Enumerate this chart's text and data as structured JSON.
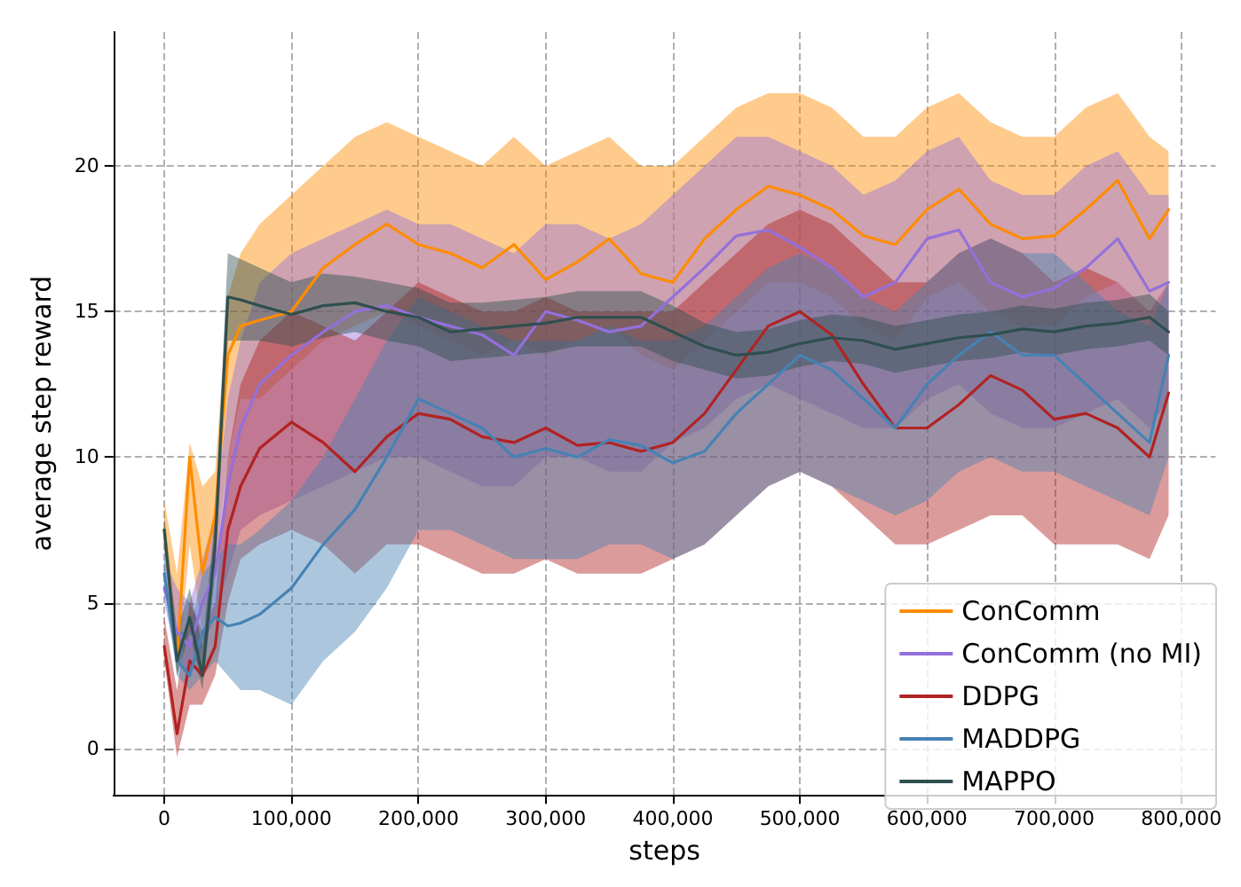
{
  "chart_data": {
    "type": "line",
    "xlabel": "steps",
    "ylabel": "average step reward",
    "x": [
      0,
      10000,
      20000,
      30000,
      40000,
      50000,
      60000,
      75000,
      100000,
      125000,
      150000,
      175000,
      200000,
      225000,
      250000,
      275000,
      300000,
      325000,
      350000,
      375000,
      400000,
      425000,
      450000,
      475000,
      500000,
      525000,
      550000,
      575000,
      600000,
      625000,
      650000,
      675000,
      700000,
      725000,
      750000,
      775000,
      790000
    ],
    "xlim": [
      -40000,
      827000
    ],
    "xticks": [
      0,
      {
        "value": 100000,
        "label": "100,000"
      },
      {
        "value": 200000,
        "label": "200,000"
      },
      {
        "value": 300000,
        "label": "300,000"
      },
      {
        "value": 400000,
        "label": "400,000"
      },
      {
        "value": 500000,
        "label": "500,000"
      },
      {
        "value": 600000,
        "label": "600,000"
      },
      {
        "value": 700000,
        "label": "700,000"
      },
      {
        "value": 800000,
        "label": "800,000"
      }
    ],
    "ylim": [
      -1.6,
      24.6
    ],
    "yticks": [
      0,
      5,
      10,
      15,
      20
    ],
    "grid": true,
    "legend": "bottom right",
    "marker": "none",
    "line_style": "solid",
    "series": [
      {
        "name": "ConComm",
        "color": "#ff8c00",
        "values": [
          7.5,
          3,
          10,
          6,
          8,
          13.5,
          14.5,
          14.7,
          15,
          16.5,
          17.3,
          18,
          17.3,
          17,
          16.5,
          17.3,
          16.1,
          16.7,
          17.5,
          16.3,
          16,
          17.5,
          18.5,
          19.3,
          19,
          18.5,
          17.6,
          17.3,
          18.5,
          19.2,
          18,
          17.5,
          17.6,
          18.5,
          19.5,
          17.5,
          18.5
        ],
        "upper": [
          8.5,
          6,
          10.5,
          9,
          9.5,
          15.5,
          17,
          18,
          19,
          20,
          21,
          21.5,
          21,
          20.5,
          20,
          21,
          20,
          20.5,
          21,
          20,
          20,
          21,
          22,
          22.5,
          22.5,
          22,
          21,
          21,
          22,
          22.5,
          21.5,
          21,
          21,
          22,
          22.5,
          21,
          20.5
        ],
        "lower": [
          7,
          2.5,
          7,
          4,
          6,
          10,
          12,
          12,
          13,
          14,
          14.5,
          15,
          14.5,
          14,
          13.5,
          14,
          13.5,
          14,
          14.5,
          13.5,
          13,
          14,
          15,
          16,
          16,
          15.5,
          14.5,
          14,
          15.5,
          16,
          15,
          14.5,
          14.5,
          15.5,
          16,
          15,
          16
        ]
      },
      {
        "name": "ConComm (no MI)",
        "color": "#9370db",
        "values": [
          5.5,
          4,
          3.5,
          5,
          6,
          9,
          11,
          12.5,
          13.5,
          14.3,
          15,
          15.2,
          14.8,
          14.5,
          14.2,
          13.5,
          15,
          14.7,
          14.3,
          14.5,
          15.5,
          16.5,
          17.6,
          17.8,
          17.2,
          16.5,
          15.5,
          16,
          17.5,
          17.8,
          16,
          15.5,
          15.8,
          16.5,
          17.5,
          15.7,
          16
        ],
        "upper": [
          6.5,
          5.5,
          5,
          6.5,
          8,
          12,
          14,
          16,
          17,
          17.5,
          18,
          18.5,
          18,
          18,
          17.5,
          17,
          18,
          18,
          17.5,
          18,
          19,
          20,
          21,
          21,
          20.5,
          20,
          19,
          19.5,
          20.5,
          21,
          19.5,
          19,
          19,
          20,
          20.5,
          19,
          19
        ],
        "lower": [
          5,
          3,
          2.5,
          3.5,
          4.5,
          6,
          7.5,
          8,
          8.5,
          9,
          9.5,
          10,
          10,
          9.5,
          9,
          9,
          10,
          10,
          9.5,
          9.5,
          10.5,
          11,
          12,
          12.5,
          12,
          11.5,
          11,
          11,
          12,
          12.5,
          11.5,
          11,
          11,
          11.5,
          12,
          11,
          12
        ]
      },
      {
        "name": "DDPG",
        "color": "#b22222",
        "values": [
          3.5,
          0.5,
          3,
          2.5,
          3.5,
          7.5,
          9,
          10.3,
          11.2,
          10.5,
          9.5,
          10.7,
          11.5,
          11.3,
          10.7,
          10.5,
          11,
          10.4,
          10.5,
          10.2,
          10.5,
          11.5,
          13,
          14.5,
          15,
          14.2,
          12.5,
          11,
          11,
          11.8,
          12.8,
          12.3,
          11.3,
          11.5,
          11,
          10,
          12.2
        ],
        "upper": [
          4.5,
          2,
          5,
          4,
          5,
          10,
          12.5,
          14,
          15,
          14.5,
          14,
          15,
          16,
          15.5,
          15,
          15,
          15.5,
          15,
          15,
          15,
          15,
          16,
          17,
          18,
          18.5,
          18,
          17,
          16,
          16,
          17,
          17.5,
          17,
          16,
          16.5,
          16,
          15,
          16
        ],
        "lower": [
          3,
          -0.3,
          1.5,
          1.5,
          2.5,
          5,
          6.5,
          7,
          7.5,
          7,
          6,
          7,
          7,
          6.5,
          6,
          6,
          6.5,
          6,
          6,
          6,
          6.5,
          7,
          8,
          9,
          9.5,
          9,
          8,
          7,
          7,
          7.5,
          8,
          8,
          7,
          7,
          7,
          6.5,
          8
        ]
      },
      {
        "name": "MADDPG",
        "color": "#4682b4",
        "values": [
          6,
          3,
          2.5,
          4,
          4.5,
          4.2,
          4.3,
          4.6,
          5.5,
          7,
          8.2,
          10,
          12,
          11.5,
          11,
          10,
          10.3,
          10,
          10.6,
          10.4,
          9.8,
          10.2,
          11.5,
          12.5,
          13.5,
          13,
          12,
          11,
          12.5,
          13.5,
          14.3,
          13.5,
          13.5,
          12.5,
          11.5,
          10.5,
          13.5
        ],
        "upper": [
          7,
          4,
          4,
          6,
          6.5,
          7,
          7,
          7.5,
          8.5,
          10,
          12,
          14,
          15.5,
          15,
          14.5,
          14,
          14,
          14,
          14.5,
          14,
          14,
          14.5,
          15.5,
          16.5,
          17,
          16.5,
          15.5,
          15,
          16,
          17,
          17.5,
          17,
          17,
          16,
          15,
          14.5,
          16
        ],
        "lower": [
          5.5,
          2.5,
          2,
          2.5,
          3,
          2.5,
          2,
          2,
          1.5,
          3,
          4,
          5.5,
          7.5,
          7.5,
          7,
          6.5,
          6.5,
          6.5,
          7,
          7,
          6.5,
          7,
          8,
          9,
          9.5,
          9,
          8.5,
          8,
          8.5,
          9.5,
          10,
          9.5,
          9.5,
          9,
          8.5,
          8,
          10
        ]
      },
      {
        "name": "MAPPO",
        "color": "#2f4f4f",
        "values": [
          7.5,
          3,
          4.5,
          2.5,
          7,
          15.5,
          15.4,
          15.2,
          14.9,
          15.2,
          15.3,
          15,
          14.8,
          14.3,
          14.4,
          14.5,
          14.6,
          14.8,
          14.8,
          14.8,
          14.3,
          13.8,
          13.5,
          13.6,
          13.9,
          14.1,
          14,
          13.7,
          13.9,
          14.1,
          14.2,
          14.4,
          14.3,
          14.5,
          14.6,
          14.8,
          14.3
        ],
        "upper": [
          8,
          4,
          5.5,
          3.5,
          8,
          17,
          16.8,
          16.5,
          16,
          16.3,
          16.2,
          16,
          15.8,
          15.3,
          15.3,
          15.4,
          15.5,
          15.7,
          15.7,
          15.7,
          15.2,
          14.6,
          14.3,
          14.4,
          14.7,
          14.9,
          14.8,
          14.5,
          14.7,
          14.9,
          15,
          15.2,
          15.1,
          15.3,
          15.4,
          15.6,
          15
        ],
        "lower": [
          7,
          2.5,
          4,
          2,
          6,
          14,
          14,
          14,
          13.8,
          14.1,
          14.3,
          14,
          13.8,
          13.3,
          13.4,
          13.5,
          13.6,
          13.8,
          13.8,
          13.8,
          13.3,
          13,
          12.7,
          12.8,
          13.1,
          13.3,
          13.2,
          12.9,
          13.1,
          13.3,
          13.4,
          13.6,
          13.5,
          13.7,
          13.8,
          14,
          13.5
        ]
      }
    ]
  }
}
